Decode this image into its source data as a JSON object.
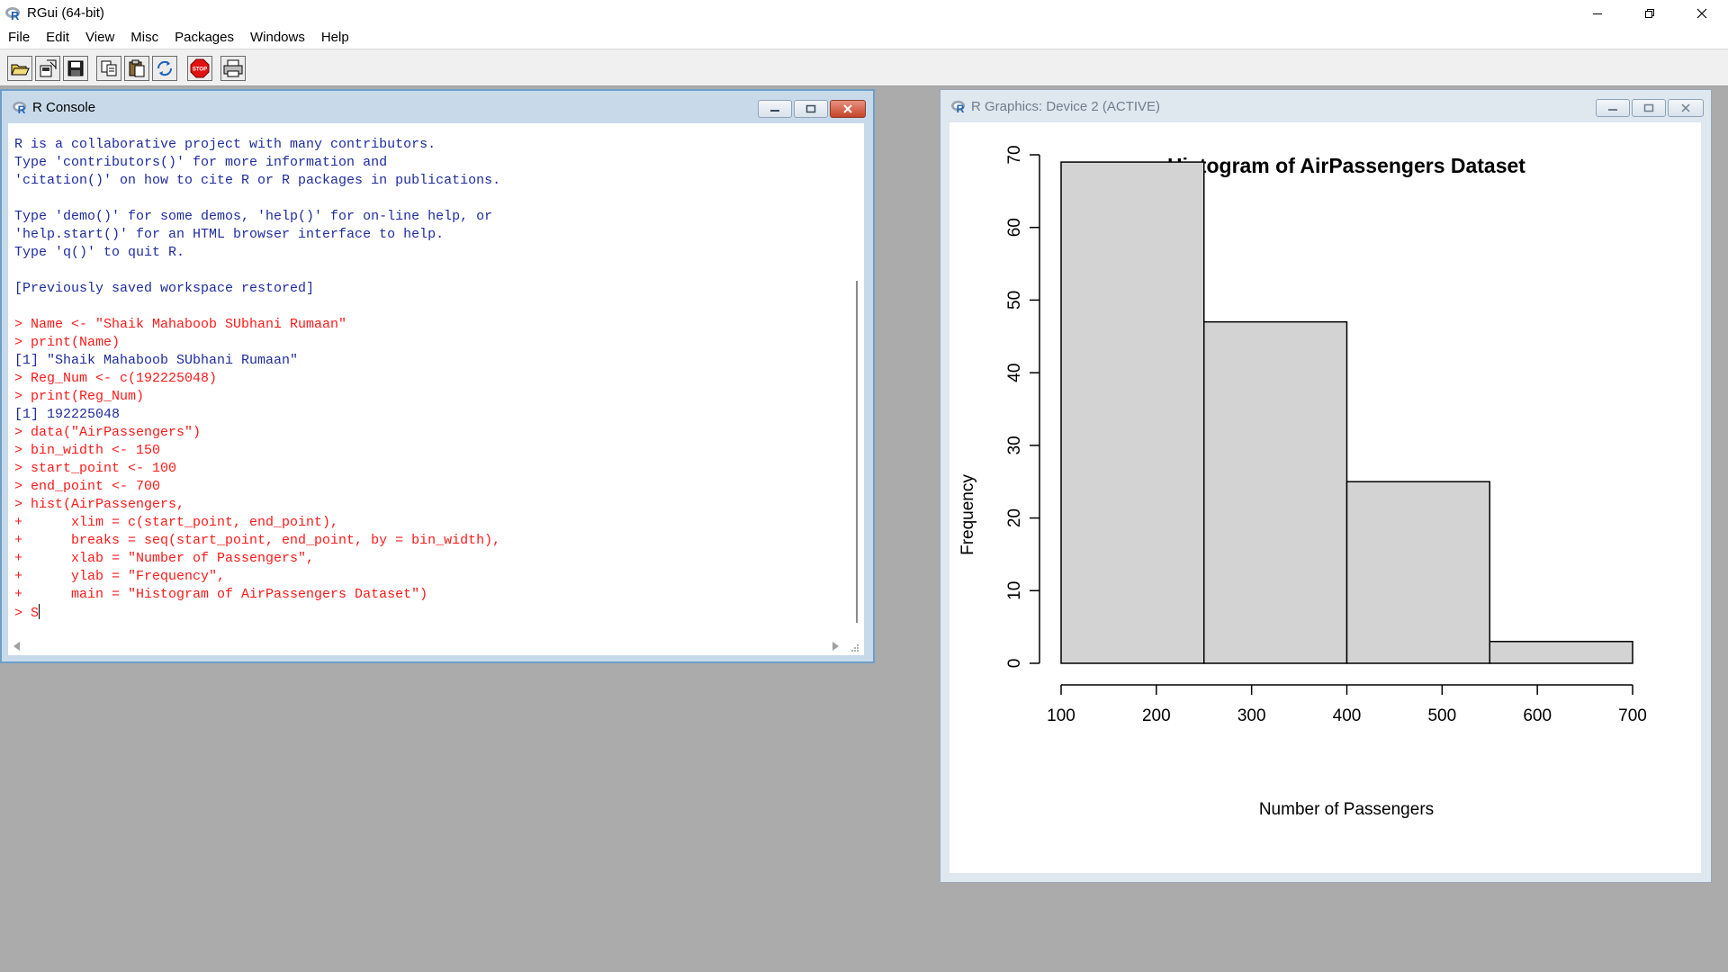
{
  "app": {
    "title": "RGui (64-bit)",
    "logo_icon": "r-logo-icon"
  },
  "window_controls": [
    "minimize-icon",
    "restore-icon",
    "close-icon"
  ],
  "menu": [
    "File",
    "Edit",
    "View",
    "Misc",
    "Packages",
    "Windows",
    "Help"
  ],
  "toolbar": {
    "buttons": [
      {
        "name": "open-script",
        "icon": "open-folder-icon"
      },
      {
        "name": "load-workspace",
        "icon": "load-workspace-icon"
      },
      {
        "name": "save-workspace",
        "icon": "save-icon"
      },
      {
        "name": "copy",
        "icon": "copy-icon"
      },
      {
        "name": "paste",
        "icon": "paste-icon"
      },
      {
        "name": "copy-paste",
        "icon": "refresh-icon"
      },
      {
        "name": "stop",
        "icon": "stop-icon",
        "label": "STOP"
      },
      {
        "name": "print",
        "icon": "print-icon"
      }
    ]
  },
  "console": {
    "title": "R Console",
    "lines": [
      {
        "text": "R is a collaborative project with many contributors.",
        "kind": "out"
      },
      {
        "text": "Type 'contributors()' for more information and",
        "kind": "out"
      },
      {
        "text": "'citation()' on how to cite R or R packages in publications.",
        "kind": "out"
      },
      {
        "text": "",
        "kind": "out"
      },
      {
        "text": "Type 'demo()' for some demos, 'help()' for on-line help, or",
        "kind": "out"
      },
      {
        "text": "'help.start()' for an HTML browser interface to help.",
        "kind": "out"
      },
      {
        "text": "Type 'q()' to quit R.",
        "kind": "out"
      },
      {
        "text": "",
        "kind": "out"
      },
      {
        "text": "[Previously saved workspace restored]",
        "kind": "out"
      },
      {
        "text": "",
        "kind": "out"
      },
      {
        "text": "> Name <- \"Shaik Mahaboob SUbhani Rumaan\"",
        "kind": "in"
      },
      {
        "text": "> print(Name)",
        "kind": "in"
      },
      {
        "text": "[1] \"Shaik Mahaboob SUbhani Rumaan\"",
        "kind": "out"
      },
      {
        "text": "> Reg_Num <- c(192225048)",
        "kind": "in"
      },
      {
        "text": "> print(Reg_Num)",
        "kind": "in"
      },
      {
        "text": "[1] 192225048",
        "kind": "out"
      },
      {
        "text": "> data(\"AirPassengers\")",
        "kind": "in"
      },
      {
        "text": "> bin_width <- 150",
        "kind": "in"
      },
      {
        "text": "> start_point <- 100",
        "kind": "in"
      },
      {
        "text": "> end_point <- 700",
        "kind": "in"
      },
      {
        "text": "> hist(AirPassengers,",
        "kind": "in"
      },
      {
        "text": "+      xlim = c(start_point, end_point),",
        "kind": "in"
      },
      {
        "text": "+      breaks = seq(start_point, end_point, by = bin_width),",
        "kind": "in"
      },
      {
        "text": "+      xlab = \"Number of Passengers\",",
        "kind": "in"
      },
      {
        "text": "+      ylab = \"Frequency\",",
        "kind": "in"
      },
      {
        "text": "+      main = \"Histogram of AirPassengers Dataset\")",
        "kind": "in"
      }
    ],
    "prompt": "> ",
    "input_value": "S"
  },
  "graphics": {
    "title": "R Graphics: Device 2 (ACTIVE)"
  },
  "chart_data": {
    "type": "bar",
    "title": "Histogram of AirPassengers Dataset",
    "xlabel": "Number of Passengers",
    "ylabel": "Frequency",
    "bins": [
      {
        "start": 100,
        "end": 250,
        "value": 69
      },
      {
        "start": 250,
        "end": 400,
        "value": 47
      },
      {
        "start": 400,
        "end": 550,
        "value": 25
      },
      {
        "start": 550,
        "end": 700,
        "value": 3
      }
    ],
    "xlim": [
      100,
      700
    ],
    "ylim": [
      0,
      70
    ],
    "xticks": [
      100,
      200,
      300,
      400,
      500,
      600,
      700
    ],
    "yticks": [
      0,
      10,
      20,
      30,
      40,
      50,
      60,
      70
    ],
    "bar_fill": "#d3d3d3",
    "bar_stroke": "#000000",
    "grid": false
  },
  "colors": {
    "console_output": "#1f2d9e",
    "console_input": "#ff1a1a",
    "mdi_background": "#ababab"
  }
}
